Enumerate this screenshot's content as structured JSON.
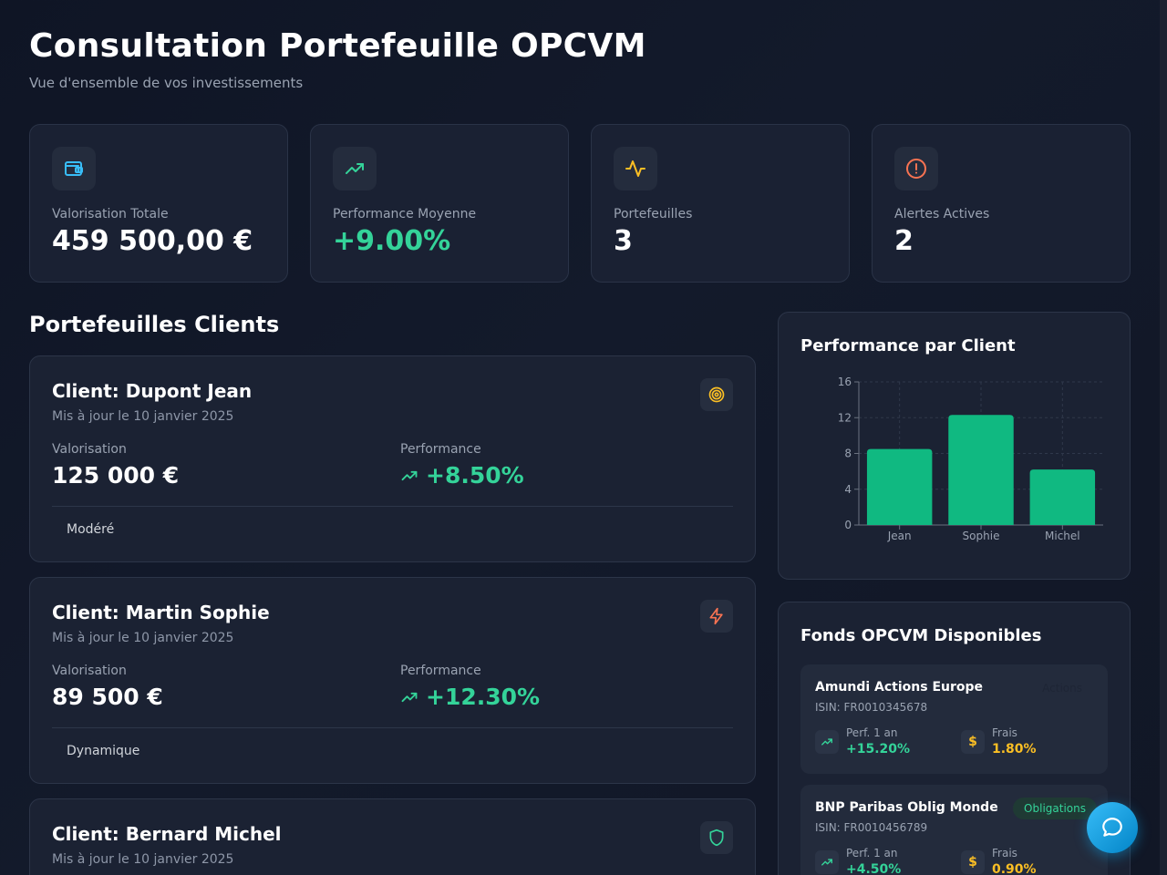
{
  "header": {
    "title": "Consultation Portefeuille OPCVM",
    "subtitle": "Vue d'ensemble de vos investissements"
  },
  "stats": [
    {
      "label": "Valorisation Totale",
      "value": "459 500,00 €",
      "icon": "wallet-icon",
      "color": "#38bdf8"
    },
    {
      "label": "Performance Moyenne",
      "value": "+9.00%",
      "icon": "trending-up-icon",
      "color": "#34d399"
    },
    {
      "label": "Portefeuilles",
      "value": "3",
      "icon": "activity-icon",
      "color": "#fbbf24"
    },
    {
      "label": "Alertes Actives",
      "value": "2",
      "icon": "alert-circle-icon",
      "color": "#f97352"
    }
  ],
  "clients_section": {
    "title": "Portefeuilles Clients",
    "valuation_label": "Valorisation",
    "performance_label": "Performance",
    "items": [
      {
        "name": "Client: Dupont Jean",
        "updated": "Mis à jour le 10 janvier 2025",
        "valuation": "125 000 €",
        "performance": "+8.50%",
        "profile": "Modéré",
        "icon": "target-icon"
      },
      {
        "name": "Client: Martin Sophie",
        "updated": "Mis à jour le 10 janvier 2025",
        "valuation": "89 500 €",
        "performance": "+12.30%",
        "profile": "Dynamique",
        "icon": "zap-icon"
      },
      {
        "name": "Client: Bernard Michel",
        "updated": "Mis à jour le 10 janvier 2025",
        "icon": "shield-icon"
      }
    ]
  },
  "chart_panel": {
    "title": "Performance par Client"
  },
  "chart_data": {
    "type": "bar",
    "title": "Performance par Client",
    "categories": [
      "Jean",
      "Sophie",
      "Michel"
    ],
    "values": [
      8.5,
      12.3,
      6.2
    ],
    "yticks": [
      "0",
      "4",
      "8",
      "12",
      "16"
    ],
    "ylim": [
      0,
      16
    ],
    "grid": true,
    "bar_color": "#10b981"
  },
  "funds_panel": {
    "title": "Fonds OPCVM Disponibles",
    "perf_label": "Perf. 1 an",
    "fees_label": "Frais",
    "items": [
      {
        "name": "Amundi Actions Europe",
        "isin": "ISIN: FR0010345678",
        "tag": "Actions",
        "perf": "+15.20%",
        "fees": "1.80%"
      },
      {
        "name": "BNP Paribas Oblig Monde",
        "isin": "ISIN: FR0010456789",
        "tag": "Obligations",
        "perf": "+4.50%",
        "fees": "0.90%"
      }
    ]
  },
  "fab": {
    "icon": "chat-icon"
  }
}
